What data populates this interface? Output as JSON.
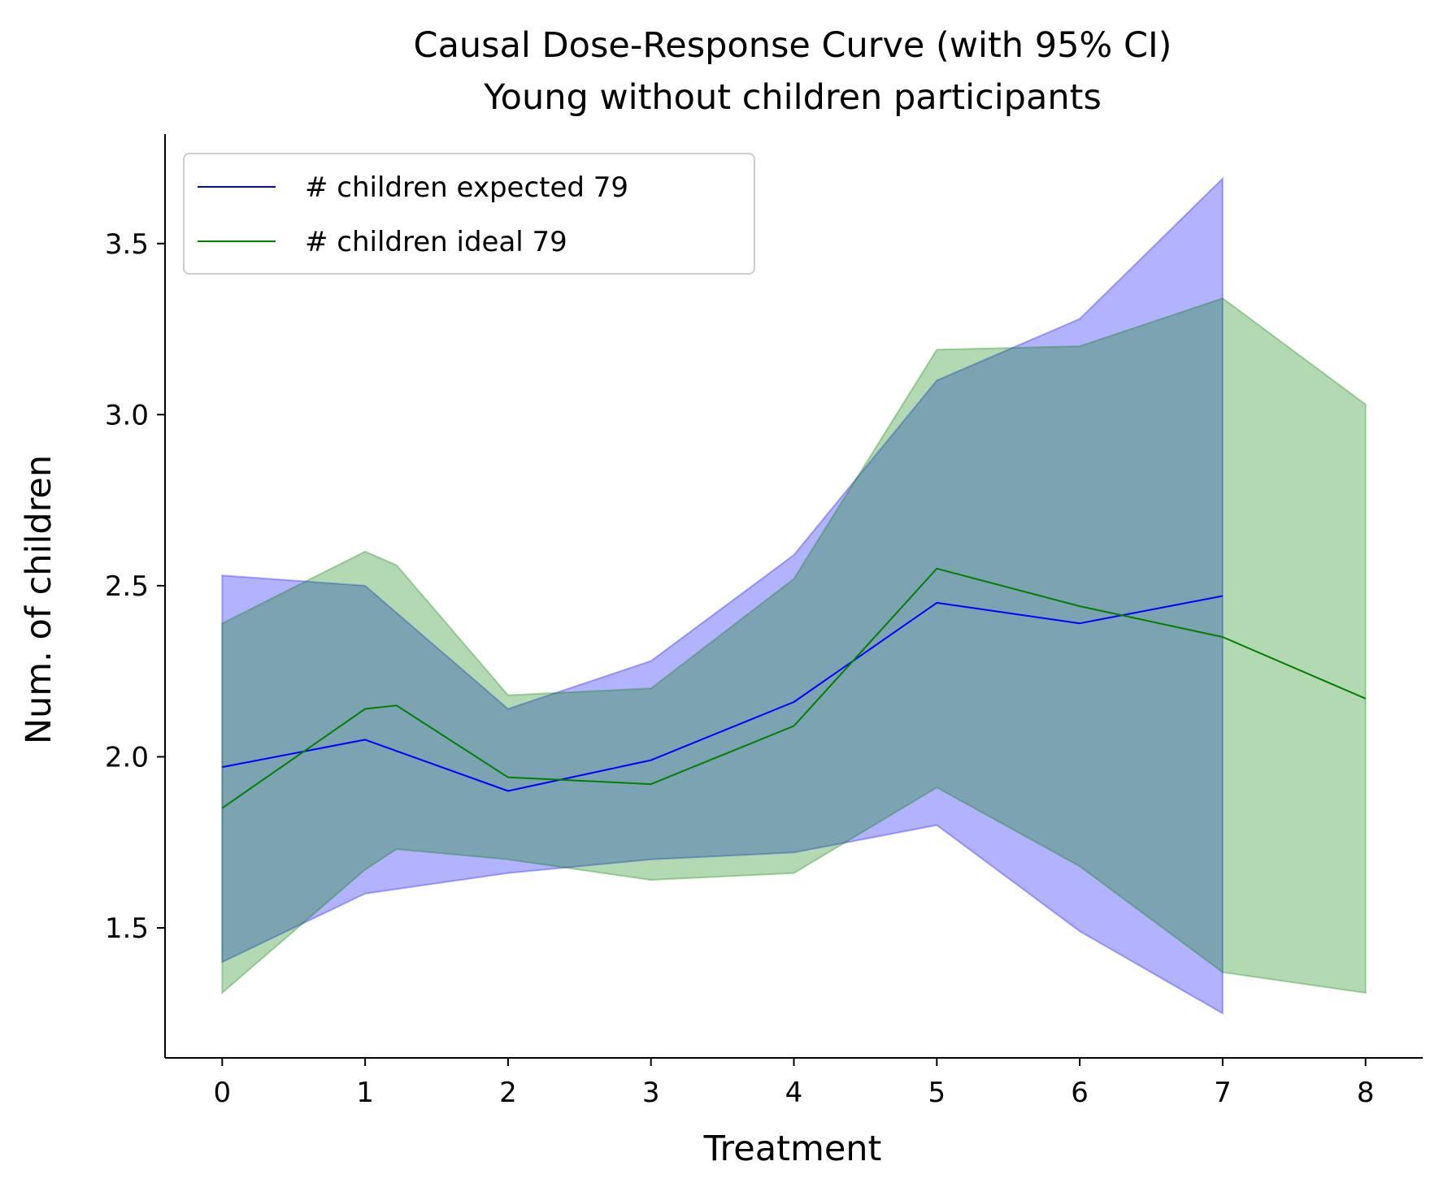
{
  "chart_data": {
    "type": "line",
    "title": "Causal Dose-Response Curve (with 95% CI)",
    "subtitle": "Young without children participants",
    "xlabel": "Treatment",
    "ylabel": "Num. of children",
    "xlim": [
      -0.4,
      8.4
    ],
    "ylim": [
      1.12,
      3.82
    ],
    "xticks": [
      0,
      1,
      2,
      3,
      4,
      5,
      6,
      7,
      8
    ],
    "xtick_labels": [
      "0",
      "1",
      "2",
      "3",
      "4",
      "5",
      "6",
      "7",
      "8"
    ],
    "yticks": [
      1.5,
      2.0,
      2.5,
      3.0,
      3.5
    ],
    "ytick_labels": [
      "1.5",
      "2.0",
      "2.5",
      "3.0",
      "3.5"
    ],
    "grid": false,
    "legend_position": "top-left",
    "series": [
      {
        "name": "# children expected 79",
        "color": "#0000ff",
        "band_color": "#0000ff",
        "x": [
          0,
          1,
          2,
          3,
          4,
          5,
          6,
          7
        ],
        "y": [
          1.97,
          2.05,
          1.9,
          1.99,
          2.16,
          2.45,
          2.39,
          2.47
        ],
        "ci_lower": [
          1.4,
          1.6,
          1.66,
          1.7,
          1.72,
          1.8,
          1.49,
          1.25
        ],
        "ci_upper": [
          2.53,
          2.5,
          2.14,
          2.28,
          2.59,
          3.1,
          3.28,
          3.69
        ]
      },
      {
        "name": "# children ideal 79",
        "color": "#008000",
        "band_color": "#008000",
        "x": [
          0,
          1,
          1.22,
          2,
          3,
          4,
          5,
          6,
          7,
          8
        ],
        "y": [
          1.85,
          2.14,
          2.15,
          1.94,
          1.92,
          2.09,
          2.55,
          2.44,
          2.35,
          2.17
        ],
        "ci_lower": [
          1.31,
          1.67,
          1.73,
          1.7,
          1.64,
          1.66,
          1.91,
          1.68,
          1.37,
          1.31
        ],
        "ci_upper": [
          2.39,
          2.6,
          2.56,
          2.18,
          2.2,
          2.52,
          3.19,
          3.2,
          3.34,
          3.03
        ]
      }
    ]
  }
}
